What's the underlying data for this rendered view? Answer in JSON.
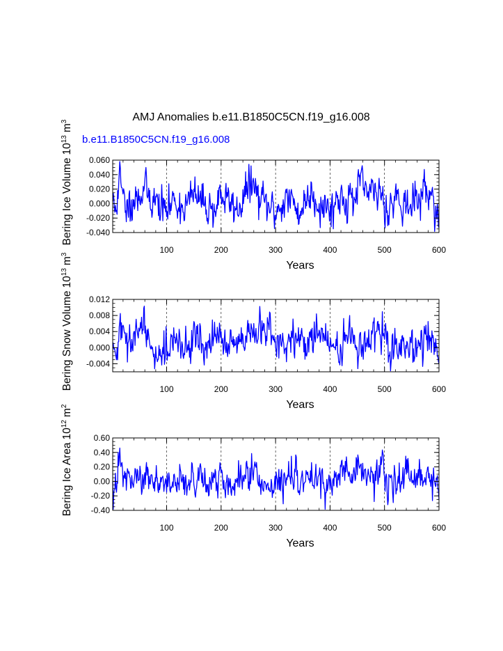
{
  "figure": {
    "title": "AMJ Anomalies b.e11.B1850C5CN.f19_g16.008",
    "case_label": "b.e11.B1850C5CN.f19_g16.008",
    "line_color": "#0000ff",
    "ref_line_color": "#000000"
  },
  "chart_data": [
    {
      "type": "line",
      "title": "",
      "xlabel": "Years",
      "ylabel": "Bering Ice Volume",
      "ylabel_unit": "10^13 m^3",
      "ylabel_base": "10",
      "ylabel_exp": "13",
      "ylabel_m": "m",
      "ylabel_mexp": "3",
      "xlim": [
        1,
        600
      ],
      "ylim": [
        -0.04,
        0.06
      ],
      "xticks": [
        100,
        200,
        300,
        400,
        500,
        600
      ],
      "yticks": [
        -0.04,
        -0.02,
        0.0,
        0.02,
        0.04,
        0.06
      ],
      "ytick_labels": [
        "-0.040",
        "-0.020",
        "0.000",
        "0.020",
        "0.040",
        "0.060"
      ],
      "grid_x": [
        100,
        200,
        300,
        400,
        500
      ],
      "seed": 11,
      "sd": 0.0125,
      "pts": [
        [
          1,
          0.003
        ],
        [
          5,
          -0.012
        ],
        [
          10,
          0.018
        ],
        [
          14,
          0.058
        ],
        [
          18,
          0.022
        ],
        [
          25,
          -0.01
        ],
        [
          35,
          0.005
        ],
        [
          48,
          0.02
        ],
        [
          60,
          0.032
        ],
        [
          75,
          0.01
        ],
        [
          100,
          -0.018
        ],
        [
          115,
          0.008
        ],
        [
          130,
          -0.012
        ],
        [
          150,
          0.02
        ],
        [
          170,
          0.0
        ],
        [
          190,
          -0.018
        ],
        [
          198,
          0.026
        ],
        [
          210,
          0.008
        ],
        [
          230,
          -0.015
        ],
        [
          255,
          0.052
        ],
        [
          270,
          0.01
        ],
        [
          300,
          -0.022
        ],
        [
          320,
          0.015
        ],
        [
          345,
          -0.02
        ],
        [
          365,
          0.03
        ],
        [
          380,
          0.0
        ],
        [
          400,
          -0.012
        ],
        [
          420,
          0.02
        ],
        [
          440,
          0.008
        ],
        [
          460,
          0.045
        ],
        [
          475,
          0.015
        ],
        [
          490,
          0.035
        ],
        [
          505,
          -0.01
        ],
        [
          525,
          0.02
        ],
        [
          545,
          -0.008
        ],
        [
          575,
          0.03
        ],
        [
          590,
          0.01
        ],
        [
          600,
          -0.03
        ]
      ],
      "series": [
        {
          "name": "b.e11.B1850C5CN.f19_g16.008"
        }
      ]
    },
    {
      "type": "line",
      "title": "",
      "xlabel": "Years",
      "ylabel": "Bering Snow Volume",
      "ylabel_unit": "10^13 m^3",
      "ylabel_base": "10",
      "ylabel_exp": "13",
      "ylabel_m": "m",
      "ylabel_mexp": "3",
      "xlim": [
        1,
        600
      ],
      "ylim": [
        -0.006,
        0.012
      ],
      "xticks": [
        100,
        200,
        300,
        400,
        500,
        600
      ],
      "yticks": [
        -0.004,
        0.0,
        0.004,
        0.008,
        0.012
      ],
      "ytick_labels": [
        "-0.004",
        "0.000",
        "0.004",
        "0.008",
        "0.012"
      ],
      "grid_x": [
        100,
        200,
        300,
        400,
        500
      ],
      "seed": 29,
      "sd": 0.0021,
      "pts": [
        [
          1,
          0.001
        ],
        [
          8,
          -0.003
        ],
        [
          15,
          0.0085
        ],
        [
          25,
          0.001
        ],
        [
          40,
          0.004
        ],
        [
          58,
          0.0098
        ],
        [
          70,
          0.0
        ],
        [
          90,
          -0.002
        ],
        [
          110,
          0.003
        ],
        [
          130,
          -0.002
        ],
        [
          150,
          0.0065
        ],
        [
          170,
          0.0
        ],
        [
          200,
          0.004
        ],
        [
          230,
          0.0
        ],
        [
          260,
          0.006
        ],
        [
          290,
          0.0086
        ],
        [
          300,
          0.0
        ],
        [
          330,
          0.003
        ],
        [
          360,
          0.002
        ],
        [
          375,
          0.0084
        ],
        [
          400,
          0.001
        ],
        [
          420,
          0.0
        ],
        [
          440,
          0.005
        ],
        [
          460,
          0.0
        ],
        [
          490,
          0.0058
        ],
        [
          510,
          -0.001
        ],
        [
          530,
          0.002
        ],
        [
          560,
          0.0
        ],
        [
          580,
          0.0065
        ],
        [
          600,
          -0.004
        ]
      ],
      "series": [
        {
          "name": "b.e11.B1850C5CN.f19_g16.008"
        }
      ]
    },
    {
      "type": "line",
      "title": "",
      "xlabel": "Years",
      "ylabel": "Bering Ice Area",
      "ylabel_unit": "10^12 m^2",
      "ylabel_base": "10",
      "ylabel_exp": "12",
      "ylabel_m": "m",
      "ylabel_mexp": "2",
      "xlim": [
        1,
        600
      ],
      "ylim": [
        -0.4,
        0.6
      ],
      "xticks": [
        100,
        200,
        300,
        400,
        500,
        600
      ],
      "yticks": [
        -0.4,
        -0.2,
        0.0,
        0.2,
        0.4,
        0.6
      ],
      "ytick_labels": [
        "-0.40",
        "-0.20",
        "0.00",
        "0.20",
        "0.40",
        "0.60"
      ],
      "grid_x": [
        100,
        200,
        300,
        400,
        500
      ],
      "seed": 47,
      "sd": 0.105,
      "pts": [
        [
          1,
          0.0
        ],
        [
          8,
          -0.15
        ],
        [
          14,
          0.46
        ],
        [
          22,
          0.05
        ],
        [
          40,
          0.0
        ],
        [
          60,
          0.12
        ],
        [
          80,
          0.0
        ],
        [
          100,
          -0.15
        ],
        [
          120,
          0.05
        ],
        [
          140,
          -0.05
        ],
        [
          160,
          0.1
        ],
        [
          180,
          0.0
        ],
        [
          200,
          0.12
        ],
        [
          220,
          -0.1
        ],
        [
          240,
          0.08
        ],
        [
          260,
          0.15
        ],
        [
          280,
          0.0
        ],
        [
          300,
          -0.1
        ],
        [
          320,
          0.05
        ],
        [
          340,
          0.15
        ],
        [
          355,
          0.0
        ],
        [
          380,
          0.1
        ],
        [
          400,
          -0.1
        ],
        [
          420,
          0.2
        ],
        [
          440,
          0.1
        ],
        [
          460,
          0.25
        ],
        [
          480,
          0.1
        ],
        [
          495,
          0.3
        ],
        [
          505,
          -0.2
        ],
        [
          520,
          0.05
        ],
        [
          540,
          0.1
        ],
        [
          560,
          -0.05
        ],
        [
          580,
          0.2
        ],
        [
          600,
          -0.25
        ]
      ],
      "series": [
        {
          "name": "b.e11.B1850C5CN.f19_g16.008"
        }
      ]
    }
  ]
}
